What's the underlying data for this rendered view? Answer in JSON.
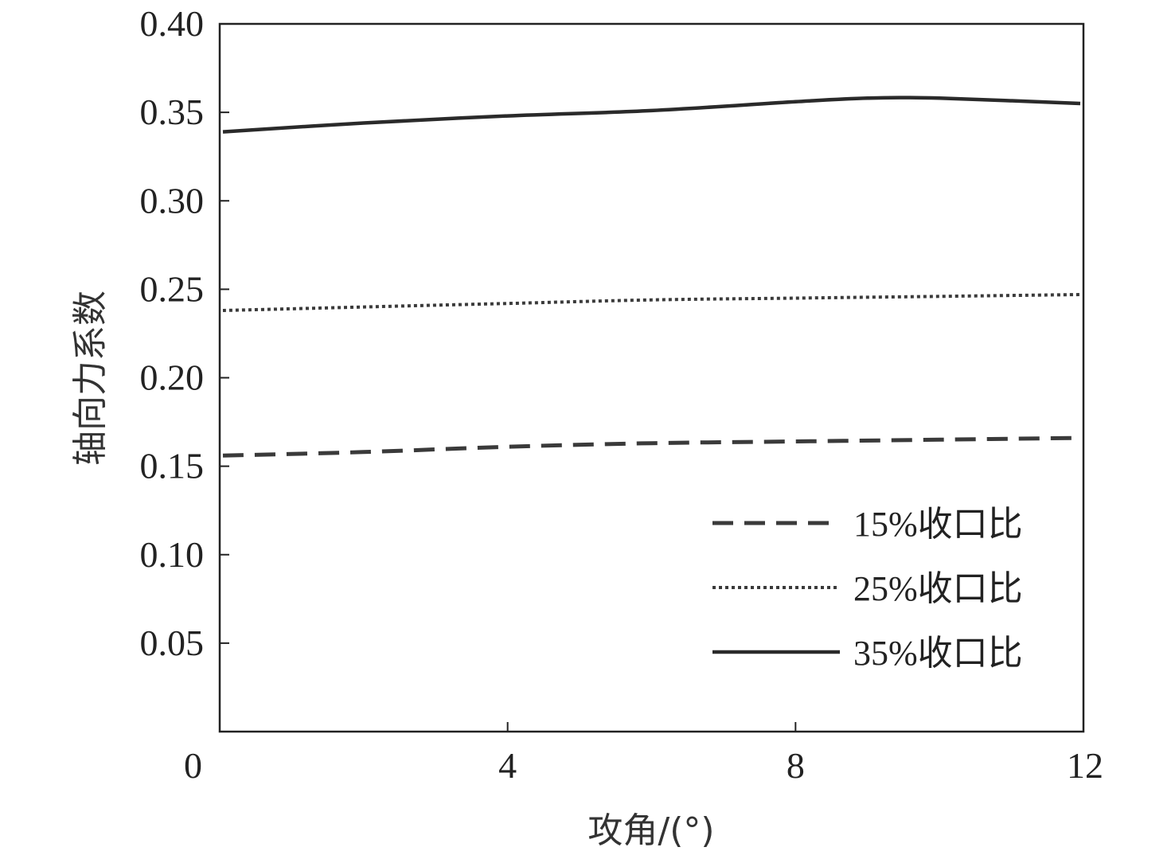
{
  "chart_data": {
    "type": "line",
    "title": "",
    "xlabel": "攻角/(°)",
    "ylabel": "轴向力系数",
    "xlim": [
      0,
      12
    ],
    "ylim": [
      0,
      0.4
    ],
    "xticks": [
      "0",
      "4",
      "8",
      "12"
    ],
    "yticks": [
      "0.05",
      "0.10",
      "0.15",
      "0.20",
      "0.25",
      "0.30",
      "0.35",
      "0.40"
    ],
    "grid": false,
    "legend_position": "bottom-right",
    "series": [
      {
        "name": "15%收口比",
        "line_style": "dashed",
        "color": "#3a3a3a",
        "x": [
          0,
          2,
          4,
          6,
          8,
          10,
          12
        ],
        "y": [
          0.156,
          0.158,
          0.161,
          0.163,
          0.164,
          0.165,
          0.166
        ]
      },
      {
        "name": "25%收口比",
        "line_style": "dotted",
        "color": "#3a3a3a",
        "x": [
          0,
          2,
          4,
          6,
          8,
          10,
          12
        ],
        "y": [
          0.238,
          0.24,
          0.242,
          0.244,
          0.245,
          0.246,
          0.247
        ]
      },
      {
        "name": "35%收口比",
        "line_style": "solid",
        "color": "#2a2a2a",
        "x": [
          0,
          2,
          4,
          6,
          8,
          9,
          10,
          12
        ],
        "y": [
          0.339,
          0.344,
          0.348,
          0.351,
          0.356,
          0.358,
          0.358,
          0.355
        ]
      }
    ]
  }
}
